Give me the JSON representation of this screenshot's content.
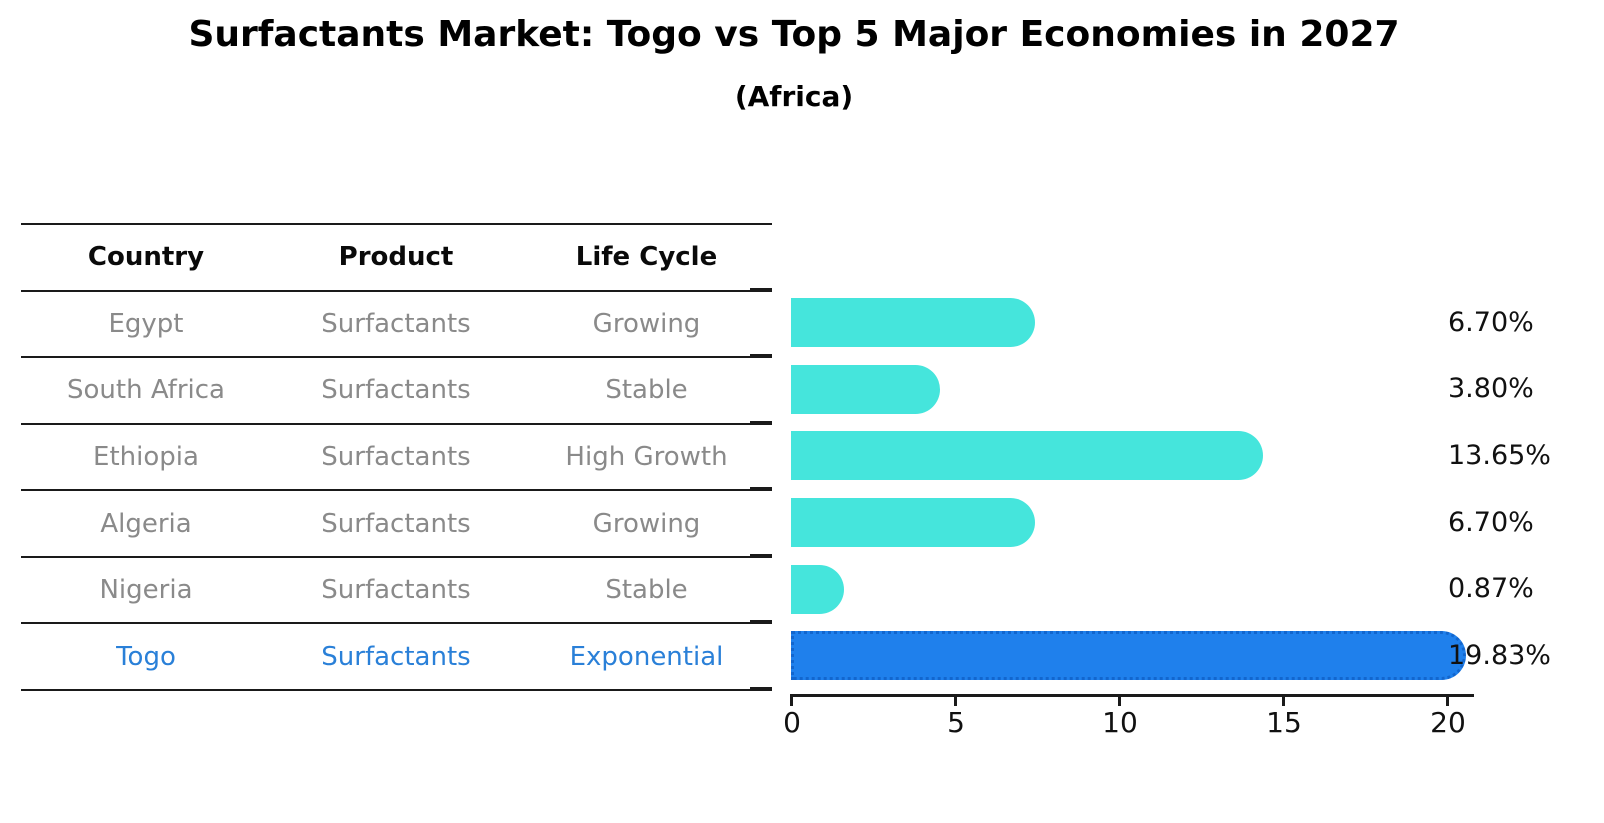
{
  "title": "Surfactants Market: Togo vs Top 5 Major Economies in 2027",
  "subtitle": "(Africa)",
  "table": {
    "headers": [
      "Country",
      "Product",
      "Life Cycle"
    ],
    "rows": [
      {
        "country": "Egypt",
        "product": "Surfactants",
        "life_cycle": "Growing",
        "highlight": false
      },
      {
        "country": "South Africa",
        "product": "Surfactants",
        "life_cycle": "Stable",
        "highlight": false
      },
      {
        "country": "Ethiopia",
        "product": "Surfactants",
        "life_cycle": "High Growth",
        "highlight": false
      },
      {
        "country": "Algeria",
        "product": "Surfactants",
        "life_cycle": "Growing",
        "highlight": false
      },
      {
        "country": "Nigeria",
        "product": "Surfactants",
        "life_cycle": "Stable",
        "highlight": false
      },
      {
        "country": "Togo",
        "product": "Surfactants",
        "life_cycle": "Exponential",
        "highlight": true
      }
    ]
  },
  "chart_data": {
    "type": "bar",
    "orientation": "horizontal",
    "title": "Surfactants Market: Togo vs Top 5 Major Economies in 2027 (Africa)",
    "categories": [
      "Egypt",
      "South Africa",
      "Ethiopia",
      "Algeria",
      "Nigeria",
      "Togo"
    ],
    "values": [
      6.7,
      3.8,
      13.65,
      6.7,
      0.87,
      19.83
    ],
    "value_labels": [
      "6.70%",
      "3.80%",
      "13.65%",
      "6.70%",
      "0.87%",
      "19.83%"
    ],
    "unit": "%",
    "x_ticks": [
      0,
      5,
      10,
      15,
      20
    ],
    "xlim": [
      0,
      20.8
    ],
    "grid": false,
    "legend": false,
    "highlight_index": 5
  },
  "colors": {
    "bar_default": "#45e5dc",
    "bar_highlight": "#1f80ec",
    "bar_highlight_border": "#1266ce",
    "highlight_text": "#2a80d8",
    "row_text": "#8a8a8a",
    "header_text": "#0a0a0a",
    "axis": "#1a1a1a"
  }
}
